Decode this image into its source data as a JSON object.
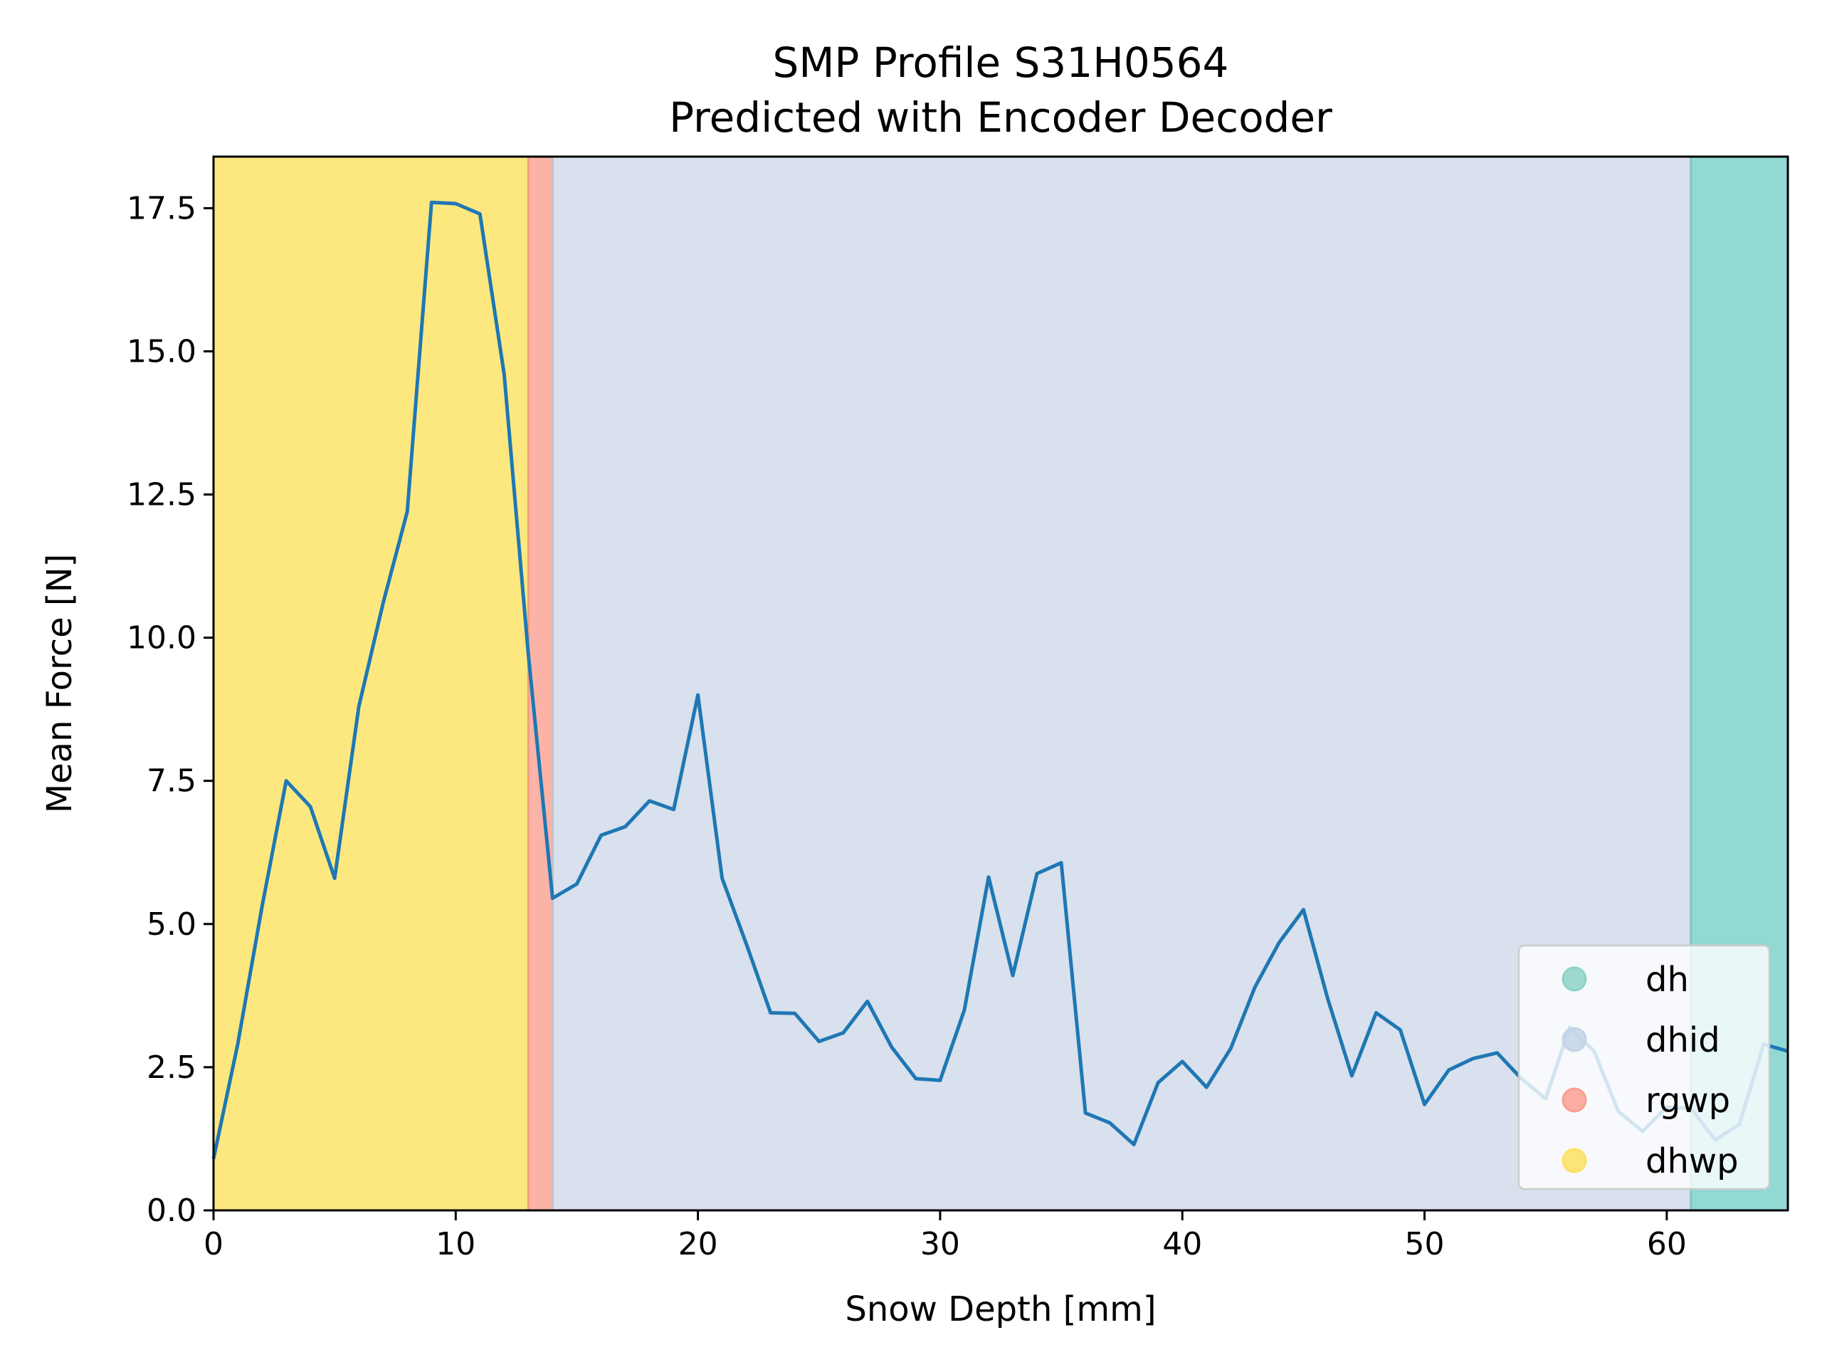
{
  "chart_data": {
    "type": "line",
    "title": "SMP Profile S31H0564",
    "subtitle": "Predicted with Encoder Decoder",
    "xlabel": "Snow Depth [mm]",
    "ylabel": "Mean Force [N]",
    "xlim": [
      0,
      65
    ],
    "ylim": [
      0,
      18.4
    ],
    "xticks": [
      0,
      10,
      20,
      30,
      40,
      50,
      60
    ],
    "xtick_labels": [
      "0",
      "10",
      "20",
      "30",
      "40",
      "50",
      "60"
    ],
    "yticks": [
      0,
      2.5,
      5,
      7.5,
      10,
      12.5,
      15,
      17.5
    ],
    "ytick_labels": [
      "0.0",
      "2.5",
      "5.0",
      "7.5",
      "10.0",
      "12.5",
      "15.0",
      "17.5"
    ],
    "grid": false,
    "legend_position": "bottom-right",
    "line_color": "#1f77b4",
    "regions": [
      {
        "label": "dhwp",
        "x0": 0,
        "x1": 13,
        "color": "#fde880"
      },
      {
        "label": "rgwp",
        "x0": 13,
        "x1": 14,
        "color": "#fbb3a8"
      },
      {
        "label": "dhid",
        "x0": 14,
        "x1": 61,
        "color": "#d8e1ed"
      },
      {
        "label": "dh",
        "x0": 61,
        "x1": 65,
        "color": "#92d8d4"
      }
    ],
    "legend": [
      {
        "label": "dh",
        "color": "#8dd3c7"
      },
      {
        "label": "dhid",
        "color": "#c4d3e6"
      },
      {
        "label": "rgwp",
        "color": "#fb9f93"
      },
      {
        "label": "dhwp",
        "color": "#fde061"
      }
    ],
    "series": [
      {
        "x": [
          0,
          1,
          2,
          3,
          4,
          5,
          6,
          7,
          8,
          9,
          10,
          11,
          12,
          13,
          14,
          15,
          16,
          17,
          18,
          19,
          20,
          21,
          22,
          23,
          24,
          25,
          26,
          27,
          28,
          29,
          30,
          31,
          32,
          33,
          34,
          35,
          36,
          37,
          38,
          39,
          40,
          41,
          42,
          43,
          44,
          45,
          46,
          47,
          48,
          49,
          50,
          51,
          52,
          53,
          54,
          55,
          56,
          57,
          58,
          59,
          60,
          61,
          62,
          63,
          64,
          65
        ],
        "y": [
          0.9,
          2.9,
          5.3,
          7.5,
          7.05,
          5.8,
          8.8,
          10.6,
          12.2,
          17.6,
          17.58,
          17.4,
          14.6,
          9.7,
          5.45,
          5.7,
          6.55,
          6.7,
          7.15,
          7.0,
          9.0,
          5.8,
          4.65,
          3.45,
          3.44,
          2.95,
          3.1,
          3.65,
          2.85,
          2.3,
          2.27,
          3.5,
          5.82,
          4.1,
          5.88,
          6.07,
          1.7,
          1.53,
          1.15,
          2.23,
          2.6,
          2.15,
          2.83,
          3.9,
          4.68,
          5.25,
          3.7,
          2.35,
          3.45,
          3.15,
          1.85,
          2.45,
          2.65,
          2.75,
          2.3,
          1.95,
          3.2,
          2.78,
          1.73,
          1.38,
          1.8,
          1.78,
          1.23,
          1.5,
          2.9,
          2.78
        ]
      }
    ]
  }
}
